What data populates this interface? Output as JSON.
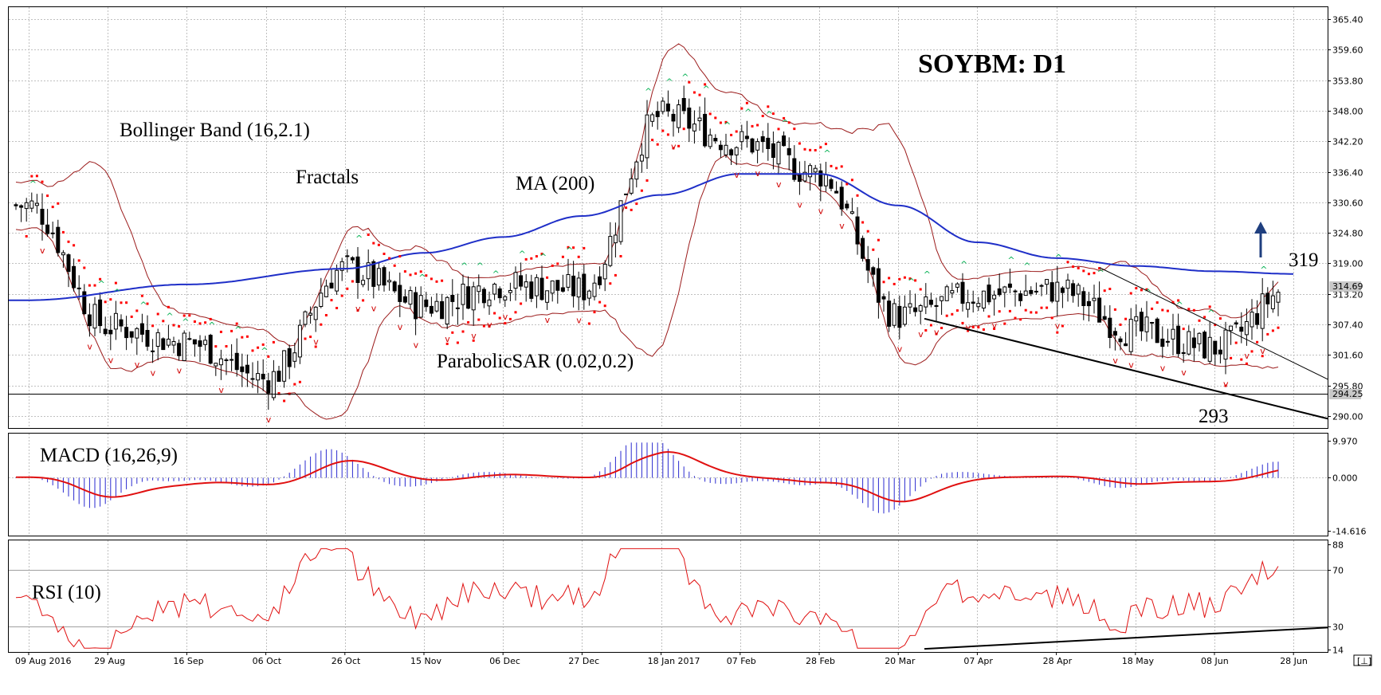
{
  "title": "SOYBM: D1",
  "annotations": {
    "bollinger": "Bollinger Band (16,2.1)",
    "fractals": "Fractals",
    "ma": "MA (200)",
    "parabolic": "ParabolicSAR (0.02,0.2)",
    "macd": "MACD (16,26,9)",
    "rsi": "RSI (10)",
    "level_319": "319",
    "level_293": "293"
  },
  "price_axis": {
    "ticks": [
      "365.40",
      "359.60",
      "353.80",
      "348.00",
      "342.20",
      "336.40",
      "330.60",
      "324.80",
      "319.00",
      "313.20",
      "307.40",
      "301.60",
      "295.80",
      "290.00"
    ],
    "current_label": "314.69",
    "support_label": "294.25"
  },
  "macd_axis": {
    "ticks": [
      "9.970",
      "0.000",
      "-14.616"
    ]
  },
  "rsi_axis": {
    "ticks": [
      "88",
      "70",
      "30",
      "14"
    ]
  },
  "date_axis": {
    "labels": [
      "09 Aug 2016",
      "29 Aug",
      "16 Sep",
      "06 Oct",
      "26 Oct",
      "15 Nov",
      "06 Dec",
      "27 Dec",
      "18 Jan 2017",
      "07 Feb",
      "28 Feb",
      "20 Mar",
      "07 Apr",
      "28 Apr",
      "18 May",
      "08 Jun",
      "28 Jun"
    ]
  },
  "colors": {
    "bollinger": "#9b1b1b",
    "ma": "#1f2fc8",
    "sar": "#ff0000",
    "fractal_up": "#00b050",
    "fractal_down": "#d00000",
    "macd_hist": "#2a2ad0",
    "macd_signal": "#e01010",
    "rsi": "#e01010",
    "arrow": "#1f3f7f"
  },
  "chart_data": {
    "type": "candlestick",
    "symbol": "SOYBM",
    "timeframe": "D1",
    "price_range": [
      288.5,
      367.5
    ],
    "close_series": [
      {
        "date": "09 Aug 2016",
        "close": 330
      },
      {
        "date": "29 Aug",
        "close": 307
      },
      {
        "date": "16 Sep",
        "close": 304
      },
      {
        "date": "06 Oct",
        "close": 297
      },
      {
        "date": "26 Oct",
        "close": 318
      },
      {
        "date": "15 Nov",
        "close": 311
      },
      {
        "date": "06 Dec",
        "close": 315
      },
      {
        "date": "27 Dec",
        "close": 314
      },
      {
        "date": "18 Jan 2017",
        "close": 347
      },
      {
        "date": "07 Feb",
        "close": 342
      },
      {
        "date": "28 Feb",
        "close": 336
      },
      {
        "date": "20 Mar",
        "close": 309
      },
      {
        "date": "07 Apr",
        "close": 313
      },
      {
        "date": "28 Apr",
        "close": 314
      },
      {
        "date": "18 May",
        "close": 306
      },
      {
        "date": "08 Jun",
        "close": 303
      },
      {
        "date": "28 Jun",
        "close": 314.69
      }
    ],
    "ma200": [
      {
        "date": "09 Aug 2016",
        "value": 312
      },
      {
        "date": "16 Sep",
        "value": 315
      },
      {
        "date": "26 Oct",
        "value": 318
      },
      {
        "date": "15 Nov",
        "value": 321
      },
      {
        "date": "06 Dec",
        "value": 324
      },
      {
        "date": "27 Dec",
        "value": 328
      },
      {
        "date": "18 Jan 2017",
        "value": 332
      },
      {
        "date": "07 Feb",
        "value": 336
      },
      {
        "date": "28 Feb",
        "value": 336
      },
      {
        "date": "20 Mar",
        "value": 330
      },
      {
        "date": "07 Apr",
        "value": 323
      },
      {
        "date": "28 Apr",
        "value": 320
      },
      {
        "date": "18 May",
        "value": 318.5
      },
      {
        "date": "08 Jun",
        "value": 317.5
      },
      {
        "date": "28 Jun",
        "value": 317
      }
    ],
    "support_level": 294.25,
    "resistance_level": 319,
    "low_level": 293,
    "macd_range": [
      -14.616,
      9.97
    ],
    "rsi_range": [
      14,
      88
    ]
  }
}
